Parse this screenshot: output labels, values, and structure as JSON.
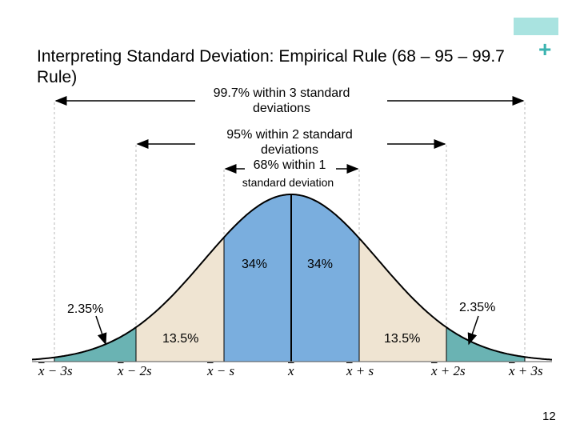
{
  "title": "Interpreting Standard Deviation: Empirical Rule (68 – 95 – 99.7 Rule)",
  "ranges": {
    "three_sd": {
      "line1": "99.7% within 3 standard",
      "line2": "deviations"
    },
    "two_sd": {
      "line1": "95% within 2 standard",
      "line2": "deviations"
    },
    "one_sd": {
      "line1": "68% within 1",
      "line2": "standard deviation"
    }
  },
  "regions": {
    "center_left": "34%",
    "center_right": "34%",
    "mid_left": "13.5%",
    "mid_right": "13.5%",
    "tail_left": "2.35%",
    "tail_right": "2.35%"
  },
  "axis_labels": [
    {
      "bar": "x",
      "rest": " − 3s"
    },
    {
      "bar": "x",
      "rest": " − 2s"
    },
    {
      "bar": "x",
      "rest": " − s"
    },
    {
      "bar": "x",
      "rest": ""
    },
    {
      "bar": "x",
      "rest": " + s"
    },
    {
      "bar": "x",
      "rest": " + 2s"
    },
    {
      "bar": "x",
      "rest": " + 3s"
    }
  ],
  "colors": {
    "center": "#7aaede",
    "middle": "#efe4d2",
    "tail": "#6ab3b3",
    "accent": "#a9e3e0"
  },
  "page_number": "12"
}
